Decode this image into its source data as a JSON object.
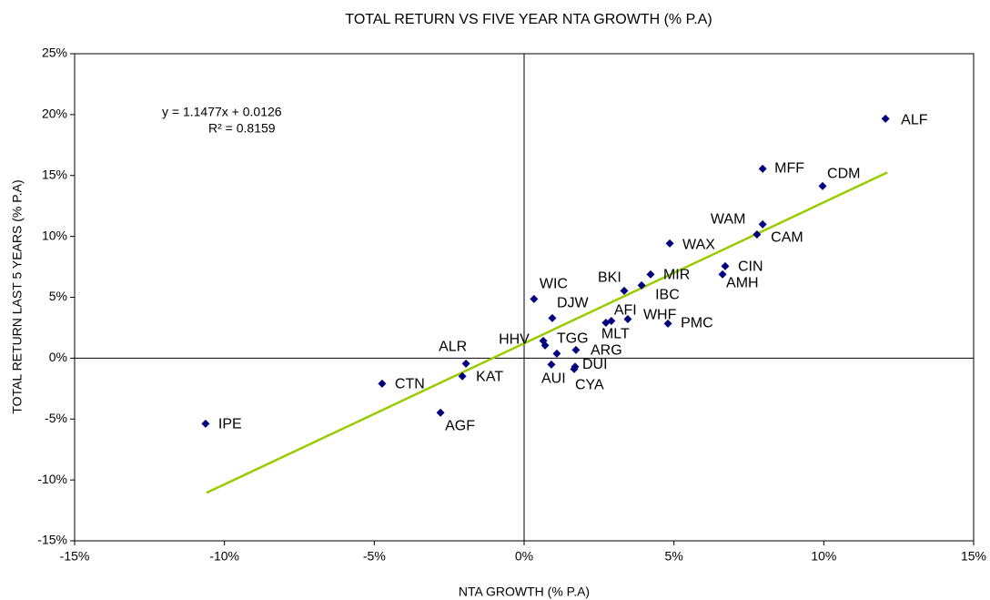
{
  "chart_data": {
    "type": "scatter",
    "title": "TOTAL RETURN VS FIVE YEAR NTA GROWTH (% P.A)",
    "xlabel": "NTA GROWTH (% P.A)",
    "ylabel": "TOTAL RETURN LAST 5 YEARS (% P.A)",
    "annotations": [
      "y = 1.1477x + 0.0126",
      "R² = 0.8159"
    ],
    "color": "#000080",
    "trendline_color": "#99cc00",
    "labels": [
      "ALF",
      "MFF",
      "CDM",
      "WAM",
      "CAM",
      "WAX",
      "CIN",
      "AMH",
      "MIR",
      "IBC",
      "BKI",
      "WIC",
      "DJW",
      "AFI",
      "MLT",
      "WHF",
      "PMC",
      "HHV",
      null,
      "TGG",
      "ARG",
      "DUI",
      "AUI",
      "CYA",
      "ALR",
      "KAT",
      "CTN",
      "AGF",
      "IPE"
    ],
    "x": [
      12.06,
      7.96,
      9.96,
      7.77,
      7.96,
      4.86,
      6.71,
      6.62,
      4.22,
      3.92,
      3.34,
      0.33,
      0.94,
      2.91,
      2.73,
      3.46,
      4.8,
      0.64,
      0.7,
      1.09,
      1.73,
      1.7,
      0.91,
      1.67,
      -1.94,
      -2.06,
      -4.74,
      -2.79,
      -10.63
    ],
    "y": [
      19.66,
      15.55,
      14.13,
      10.16,
      10.99,
      9.42,
      7.55,
      6.88,
      6.88,
      5.98,
      5.53,
      4.86,
      3.29,
      3.06,
      2.91,
      3.21,
      2.84,
      1.42,
      1.05,
      0.37,
      0.67,
      -0.7,
      -0.52,
      -0.9,
      -0.45,
      -1.49,
      -2.09,
      -4.48,
      -5.38
    ],
    "trendline": {
      "x": [
        -10.6,
        12.12
      ],
      "y": [
        -11.06,
        15.25
      ]
    },
    "xlim": [
      -15,
      15
    ],
    "ylim": [
      -15,
      25
    ],
    "xticks": [
      {
        "value": -15,
        "label": "-15%"
      },
      {
        "value": -10,
        "label": "-10%"
      },
      {
        "value": -5,
        "label": "-5%"
      },
      {
        "value": 0,
        "label": "0%"
      },
      {
        "value": 5,
        "label": "5%"
      },
      {
        "value": 10,
        "label": "10%"
      },
      {
        "value": 15,
        "label": "15%"
      }
    ],
    "yticks": [
      {
        "value": -15,
        "label": "-15%"
      },
      {
        "value": -10,
        "label": "-10%"
      },
      {
        "value": -5,
        "label": "-5%"
      },
      {
        "value": 0,
        "label": "0%"
      },
      {
        "value": 5,
        "label": "5%"
      },
      {
        "value": 10,
        "label": "10%"
      },
      {
        "value": 15,
        "label": "15%"
      },
      {
        "value": 20,
        "label": "20%"
      },
      {
        "value": 25,
        "label": "25%"
      }
    ]
  }
}
